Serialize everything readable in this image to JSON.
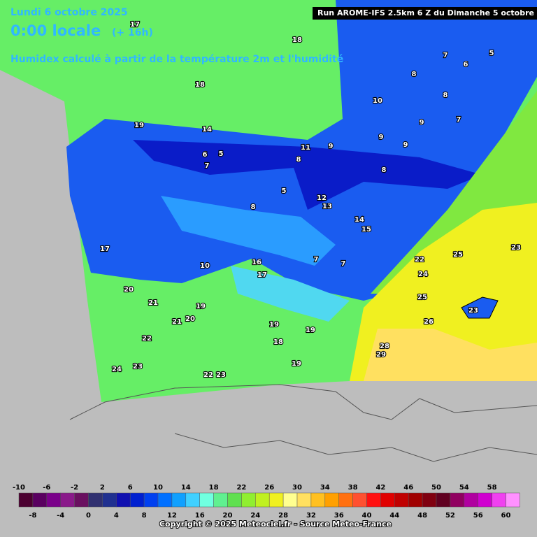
{
  "header": {
    "date": "Lundi 6 octobre 2025",
    "time": "0:00 locale",
    "lead": "(+ 16h)",
    "description": "Humidex calculé à partir de la température 2m et l'humidité",
    "run": "Run AROME-IFS 2.5km 6 Z du Dimanche 5 octobre 2025"
  },
  "map_labels": [
    17,
    18,
    18,
    19,
    14,
    7,
    5,
    6,
    8,
    10,
    8,
    9,
    7,
    9,
    9,
    9,
    11,
    6,
    5,
    7,
    8,
    8,
    5,
    8,
    12,
    13,
    14,
    15,
    25,
    23,
    22,
    24,
    17,
    10,
    16,
    17,
    7,
    7,
    20,
    21,
    19,
    20,
    21,
    25,
    26,
    19,
    19,
    18,
    22,
    28,
    29,
    24,
    23,
    22,
    23,
    19,
    23
  ],
  "legend": {
    "ticks": [
      -10,
      -8,
      -6,
      -4,
      -2,
      0,
      2,
      4,
      6,
      8,
      10,
      12,
      14,
      16,
      18,
      20,
      22,
      24,
      26,
      28,
      30,
      32,
      34,
      36,
      38,
      40,
      42,
      44,
      46,
      48,
      50,
      52,
      54,
      56,
      58,
      60
    ],
    "colors": [
      "#4b0030",
      "#5a0060",
      "#7a008a",
      "#8a1a8a",
      "#6a1060",
      "#303070",
      "#203090",
      "#1010b0",
      "#0020d0",
      "#0040f0",
      "#0070ff",
      "#10a0ff",
      "#40d0ff",
      "#70ffe0",
      "#60f090",
      "#60e050",
      "#90ee30",
      "#c0f020",
      "#f0f020",
      "#ffff90",
      "#ffe060",
      "#ffc020",
      "#ffa000",
      "#ff7010",
      "#ff5030",
      "#ff1010",
      "#e00000",
      "#c00000",
      "#a00000",
      "#800010",
      "#600020",
      "#900060",
      "#b000a0",
      "#d000d0",
      "#f040f0",
      "#ff90ff"
    ]
  },
  "copyright": "Copyright © 2025 Meteociel.fr - Source Meteo-France"
}
